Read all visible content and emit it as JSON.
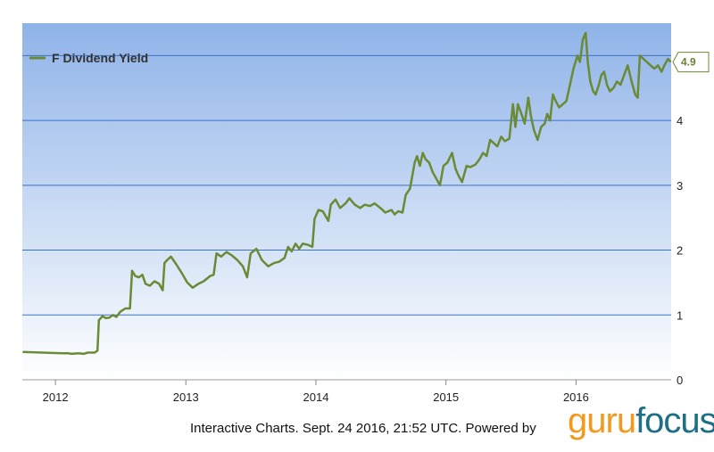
{
  "chart_data": {
    "type": "line",
    "series": [
      {
        "name": "F Dividend Yield",
        "points": [
          [
            "2011-10-01",
            0.43
          ],
          [
            "2012-01-20",
            0.41
          ],
          [
            "2012-02-05",
            0.41
          ],
          [
            "2012-02-15",
            0.4
          ],
          [
            "2012-03-05",
            0.41
          ],
          [
            "2012-03-20",
            0.4
          ],
          [
            "2012-04-01",
            0.42
          ],
          [
            "2012-04-20",
            0.42
          ],
          [
            "2012-04-28",
            0.45
          ],
          [
            "2012-05-02",
            0.92
          ],
          [
            "2012-05-12",
            0.98
          ],
          [
            "2012-05-22",
            0.95
          ],
          [
            "2012-06-01",
            0.96
          ],
          [
            "2012-06-10",
            1.0
          ],
          [
            "2012-06-20",
            0.97
          ],
          [
            "2012-07-01",
            1.05
          ],
          [
            "2012-07-15",
            1.1
          ],
          [
            "2012-07-28",
            1.1
          ],
          [
            "2012-08-03",
            1.68
          ],
          [
            "2012-08-12",
            1.6
          ],
          [
            "2012-08-22",
            1.58
          ],
          [
            "2012-09-01",
            1.62
          ],
          [
            "2012-09-10",
            1.48
          ],
          [
            "2012-09-22",
            1.45
          ],
          [
            "2012-10-05",
            1.52
          ],
          [
            "2012-10-18",
            1.48
          ],
          [
            "2012-10-28",
            1.38
          ],
          [
            "2012-11-02",
            1.8
          ],
          [
            "2012-11-10",
            1.85
          ],
          [
            "2012-11-20",
            1.9
          ],
          [
            "2012-12-05",
            1.78
          ],
          [
            "2012-12-20",
            1.65
          ],
          [
            "2013-01-05",
            1.5
          ],
          [
            "2013-01-20",
            1.42
          ],
          [
            "2013-02-05",
            1.48
          ],
          [
            "2013-02-20",
            1.52
          ],
          [
            "2013-03-10",
            1.6
          ],
          [
            "2013-03-20",
            1.62
          ],
          [
            "2013-03-28",
            1.95
          ],
          [
            "2013-04-10",
            1.9
          ],
          [
            "2013-04-25",
            1.97
          ],
          [
            "2013-05-10",
            1.92
          ],
          [
            "2013-05-25",
            1.85
          ],
          [
            "2013-06-10",
            1.75
          ],
          [
            "2013-06-22",
            1.58
          ],
          [
            "2013-07-02",
            1.95
          ],
          [
            "2013-07-18",
            2.02
          ],
          [
            "2013-08-02",
            1.85
          ],
          [
            "2013-08-20",
            1.75
          ],
          [
            "2013-09-05",
            1.8
          ],
          [
            "2013-09-20",
            1.82
          ],
          [
            "2013-10-05",
            1.88
          ],
          [
            "2013-10-15",
            2.05
          ],
          [
            "2013-10-25",
            1.98
          ],
          [
            "2013-11-05",
            2.1
          ],
          [
            "2013-11-15",
            2.02
          ],
          [
            "2013-11-25",
            2.1
          ],
          [
            "2013-12-10",
            2.08
          ],
          [
            "2013-12-22",
            2.05
          ],
          [
            "2013-12-28",
            2.48
          ],
          [
            "2014-01-08",
            2.62
          ],
          [
            "2014-01-20",
            2.6
          ],
          [
            "2014-02-05",
            2.45
          ],
          [
            "2014-02-12",
            2.7
          ],
          [
            "2014-02-25",
            2.78
          ],
          [
            "2014-03-10",
            2.65
          ],
          [
            "2014-03-25",
            2.72
          ],
          [
            "2014-04-05",
            2.8
          ],
          [
            "2014-04-20",
            2.7
          ],
          [
            "2014-05-05",
            2.65
          ],
          [
            "2014-05-18",
            2.7
          ],
          [
            "2014-06-01",
            2.68
          ],
          [
            "2014-06-15",
            2.72
          ],
          [
            "2014-07-01",
            2.65
          ],
          [
            "2014-07-15",
            2.58
          ],
          [
            "2014-08-01",
            2.62
          ],
          [
            "2014-08-10",
            2.55
          ],
          [
            "2014-08-20",
            2.6
          ],
          [
            "2014-09-01",
            2.58
          ],
          [
            "2014-09-10",
            2.85
          ],
          [
            "2014-09-22",
            2.95
          ],
          [
            "2014-10-05",
            3.35
          ],
          [
            "2014-10-12",
            3.45
          ],
          [
            "2014-10-20",
            3.3
          ],
          [
            "2014-10-28",
            3.5
          ],
          [
            "2014-11-05",
            3.4
          ],
          [
            "2014-11-15",
            3.35
          ],
          [
            "2014-11-25",
            3.2
          ],
          [
            "2014-12-05",
            3.1
          ],
          [
            "2014-12-15",
            3.0
          ],
          [
            "2014-12-25",
            3.3
          ],
          [
            "2015-01-05",
            3.35
          ],
          [
            "2015-01-18",
            3.5
          ],
          [
            "2015-01-28",
            3.25
          ],
          [
            "2015-02-05",
            3.15
          ],
          [
            "2015-02-15",
            3.05
          ],
          [
            "2015-02-28",
            3.3
          ],
          [
            "2015-03-10",
            3.28
          ],
          [
            "2015-03-25",
            3.32
          ],
          [
            "2015-04-05",
            3.4
          ],
          [
            "2015-04-15",
            3.5
          ],
          [
            "2015-04-25",
            3.45
          ],
          [
            "2015-05-05",
            3.7
          ],
          [
            "2015-05-15",
            3.65
          ],
          [
            "2015-05-25",
            3.6
          ],
          [
            "2015-06-05",
            3.75
          ],
          [
            "2015-06-15",
            3.68
          ],
          [
            "2015-06-28",
            3.72
          ],
          [
            "2015-07-08",
            4.25
          ],
          [
            "2015-07-15",
            3.9
          ],
          [
            "2015-07-22",
            4.25
          ],
          [
            "2015-08-01",
            4.1
          ],
          [
            "2015-08-10",
            3.95
          ],
          [
            "2015-08-20",
            4.35
          ],
          [
            "2015-08-28",
            4.05
          ],
          [
            "2015-09-05",
            3.85
          ],
          [
            "2015-09-15",
            3.7
          ],
          [
            "2015-09-25",
            3.9
          ],
          [
            "2015-10-05",
            3.95
          ],
          [
            "2015-10-12",
            4.1
          ],
          [
            "2015-10-20",
            4.0
          ],
          [
            "2015-10-28",
            4.4
          ],
          [
            "2015-11-05",
            4.3
          ],
          [
            "2015-11-15",
            4.2
          ],
          [
            "2015-11-25",
            4.25
          ],
          [
            "2015-12-05",
            4.3
          ],
          [
            "2015-12-15",
            4.55
          ],
          [
            "2015-12-25",
            4.8
          ],
          [
            "2016-01-05",
            5.0
          ],
          [
            "2016-01-12",
            4.9
          ],
          [
            "2016-01-20",
            5.25
          ],
          [
            "2016-01-28",
            5.35
          ],
          [
            "2016-02-03",
            4.9
          ],
          [
            "2016-02-10",
            4.6
          ],
          [
            "2016-02-18",
            4.45
          ],
          [
            "2016-02-25",
            4.4
          ],
          [
            "2016-03-05",
            4.55
          ],
          [
            "2016-03-12",
            4.7
          ],
          [
            "2016-03-20",
            4.75
          ],
          [
            "2016-03-28",
            4.55
          ],
          [
            "2016-04-05",
            4.45
          ],
          [
            "2016-04-15",
            4.5
          ],
          [
            "2016-04-25",
            4.6
          ],
          [
            "2016-05-05",
            4.55
          ],
          [
            "2016-05-15",
            4.7
          ],
          [
            "2016-05-25",
            4.85
          ],
          [
            "2016-06-05",
            4.6
          ],
          [
            "2016-06-15",
            4.4
          ],
          [
            "2016-06-22",
            4.35
          ],
          [
            "2016-06-28",
            5.0
          ],
          [
            "2016-07-08",
            4.95
          ],
          [
            "2016-07-18",
            4.9
          ],
          [
            "2016-07-28",
            4.85
          ],
          [
            "2016-08-08",
            4.8
          ],
          [
            "2016-08-18",
            4.85
          ],
          [
            "2016-08-28",
            4.75
          ],
          [
            "2016-09-05",
            4.85
          ],
          [
            "2016-09-15",
            4.95
          ],
          [
            "2016-09-23",
            4.9
          ]
        ]
      }
    ],
    "x_axis": {
      "ticks": [
        "2012",
        "2013",
        "2014",
        "2015",
        "2016"
      ],
      "range": [
        "2011-09-30",
        "2016-09-24"
      ]
    },
    "y_axis": {
      "ticks": [
        "0",
        "1",
        "2",
        "3",
        "4"
      ],
      "range": [
        0,
        5.5
      ],
      "position": "right"
    },
    "last_value_label": "4.9",
    "legend": {
      "label": "F Dividend Yield",
      "placement": "top-left"
    },
    "grid": true,
    "colors": {
      "line": "#6b8a35",
      "grid": "#3a72c8",
      "plot_top": "#8fb3e8",
      "plot_bottom": "#ffffff"
    }
  },
  "footer": {
    "text": "Interactive Charts. Sept. 24 2016, 21:52 UTC. Powered by",
    "logo_part1": "guru",
    "logo_part2": "focus"
  }
}
